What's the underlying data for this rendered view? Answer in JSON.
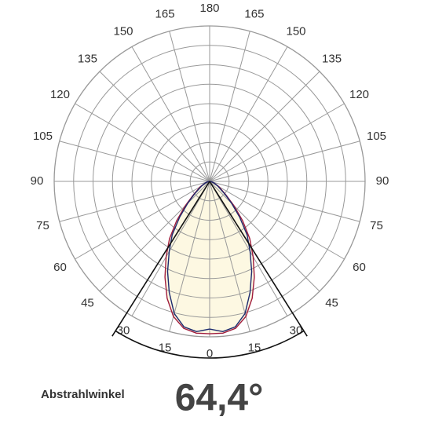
{
  "chart_data": {
    "type": "polar",
    "angle_ticks": [
      0,
      15,
      30,
      45,
      60,
      75,
      90,
      105,
      120,
      135,
      150,
      165,
      180
    ],
    "rlim": [
      0,
      100
    ],
    "rticks": [
      12.5,
      25,
      37.5,
      50,
      62.5,
      75,
      87.5,
      100
    ],
    "angles": [
      0,
      5,
      10,
      15,
      20,
      25,
      30,
      35,
      40,
      45,
      50,
      60,
      70,
      80,
      90
    ],
    "series": [
      {
        "color": "#a01c3c",
        "values": [
          98,
          98,
          96,
          90,
          80,
          68,
          56,
          45,
          33,
          22,
          14,
          7,
          3,
          1,
          0
        ]
      },
      {
        "color": "#1c2a6e",
        "values": [
          95,
          97,
          95,
          88,
          76,
          64,
          52,
          42,
          30,
          20,
          13,
          6,
          3,
          1,
          0
        ]
      }
    ],
    "fill": "#fdf8e2",
    "beam_angle": {
      "value": 64.4,
      "label": "64,4°"
    },
    "beam_label": "Abstrahlwinkel"
  }
}
